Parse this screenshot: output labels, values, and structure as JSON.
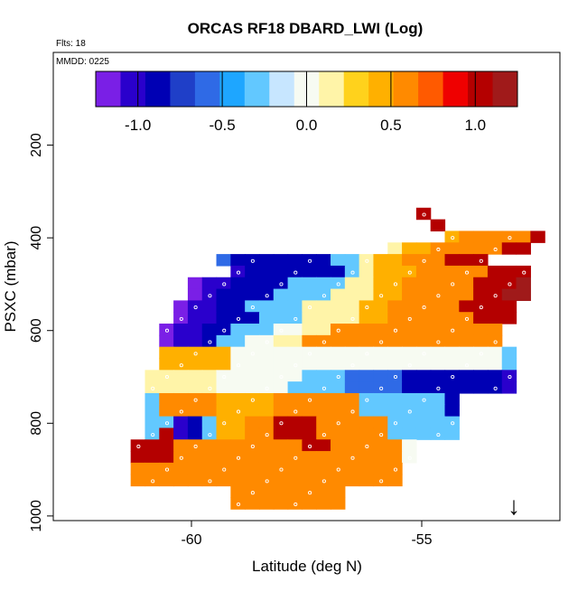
{
  "chart_data": {
    "type": "heatmap",
    "title": "ORCAS RF18 DBARD_LWI (Log)",
    "corner_labels": {
      "flights": "Flts: 18",
      "mmdd": "MMDD: 0225"
    },
    "xlabel": "Latitude (deg N)",
    "ylabel": "PSXC (mbar)",
    "xlim": [
      -63,
      -52
    ],
    "ylim": [
      1010,
      0
    ],
    "y_scale_note": "pressure axis increases downward",
    "x_ticks": [
      {
        "value": -60,
        "label": "-60"
      },
      {
        "value": -55,
        "label": "-55"
      }
    ],
    "y_ticks": [
      {
        "value": 200,
        "label": "200"
      },
      {
        "value": 400,
        "label": "400"
      },
      {
        "value": 600,
        "label": "600"
      },
      {
        "value": 800,
        "label": "800"
      },
      {
        "value": 1000,
        "label": "1000"
      }
    ],
    "colorbar": {
      "range": [
        -1.25,
        1.25
      ],
      "ticks": [
        {
          "value": -1.0,
          "label": "-1.0"
        },
        {
          "value": -0.5,
          "label": "-0.5"
        },
        {
          "value": 0.0,
          "label": "0.0"
        },
        {
          "value": 0.5,
          "label": "0.5"
        },
        {
          "value": 1.0,
          "label": "1.0"
        }
      ],
      "colors": [
        "#7a1fe6",
        "#2a00cc",
        "#0000b4",
        "#1f3fc8",
        "#2f6ae6",
        "#1ea6ff",
        "#62c8ff",
        "#c7e6ff",
        "#f7fbf2",
        "#fff4a8",
        "#ffd21c",
        "#ffb000",
        "#ff8a00",
        "#ff5a00",
        "#ef0000",
        "#b40000",
        "#a01a1a"
      ]
    },
    "cell_grid": {
      "lat_start": -62.25,
      "lat_step": 0.31,
      "p_start": 310,
      "p_step": 25
    },
    "rows": [
      {
        "p": 335,
        "cols": [],
        "values": []
      },
      {
        "p": 360,
        "cols": [],
        "values": []
      },
      {
        "p": 385,
        "cols": [],
        "values": []
      },
      {
        "p": 410,
        "cols": [],
        "values": []
      },
      {
        "p": 435,
        "cols": [],
        "values": []
      },
      {
        "p": 460,
        "cols": [],
        "values": []
      },
      {
        "p": 485,
        "cols": [],
        "values": []
      },
      {
        "p": 510,
        "cols": [],
        "values": []
      },
      {
        "p": 535,
        "cols": [],
        "values": []
      },
      {
        "p": 560,
        "cols": [],
        "values": []
      },
      {
        "p": 585,
        "cols": [],
        "values": []
      },
      {
        "p": 610,
        "cols": [],
        "values": []
      },
      {
        "p": 635,
        "cols": [],
        "values": []
      },
      {
        "p": 660,
        "cols": [],
        "values": []
      },
      {
        "p": 685,
        "cols": [],
        "values": []
      },
      {
        "p": 710,
        "cols": [],
        "values": []
      },
      {
        "p": 735,
        "cols": [],
        "values": []
      },
      {
        "p": 760,
        "cols": [],
        "values": []
      },
      {
        "p": 785,
        "cols": [],
        "values": []
      },
      {
        "p": 810,
        "cols": [],
        "values": []
      },
      {
        "p": 835,
        "cols": [],
        "values": []
      },
      {
        "p": 860,
        "cols": [],
        "values": []
      },
      {
        "p": 885,
        "cols": [],
        "values": []
      },
      {
        "p": 910,
        "cols": [],
        "values": []
      },
      {
        "p": 935,
        "cols": [],
        "values": []
      },
      {
        "p": 960,
        "cols": [],
        "values": []
      },
      {
        "p": 985,
        "cols": [],
        "values": []
      }
    ],
    "grid": [
      "..................................",
      ".......................R..........",
      "........................R.........",
      ".........................YOOOOOR..",
      ".....................PYYOOOOORR...",
      ".........CBBBBBBBLLPYYOOORRR......",
      "..........UBBBBBBBLPYYYOOOOORRR..",
      ".......VUUBBBBLLLLPPYYOOOOORRRD..",
      ".......VUBBBBLLLLPPPYYOOOOORRDD..",
      "......VUUBBLLLLPPPPYYOOOOORRRR...",
      "......VUUBBBLLLPPPPYYOOOOOORRR...",
      ".....VUUBBLLLWWPPOOOOOOOOOOOO....",
      ".....VUUBLLWWPPOOOOOOOOOOOOOO....",
      ".....YYYYYWWWWWWWWWWWWWWWWWWWL...",
      ".....YYYYYWWWWWWWWWWWWWWWWWWWL...",
      "....PPPPPWWWWWWLLLCCCCBBBBBBBU...",
      "....PPPPPWWWWWLLLLCCCCBBBBBBBU...",
      "....LOOOOYYYYOOOOOOLLLLLLB.......",
      "....LOOOOYYYYOOOOOOLLLLLLB.......",
      "....LLUBLYYOORRROOOOOLLLLL.......",
      "....LRUBLYYOORRROOOOOLLLLL.......",
      "...RRROOOOOOOOORROOOOOW...........",
      "...RRROOOOOOOOOOOOOOOOW...........",
      "...OOOOOOOOOOOOOOOOOOO............",
      "...OOOOOOOOOOOOOOOOOOO............",
      "..........OOOOOOOO................",
      "..........OOOOOOOO................"
    ],
    "legend_codes": {
      "V": -1.2,
      "U": -1.05,
      "B": -0.85,
      "C": -0.55,
      "L": -0.35,
      "W": 0.05,
      "P": 0.2,
      "Y": 0.45,
      "O": 0.65,
      "R": 1.0,
      "D": 1.2
    },
    "annotation": {
      "symbol": "↓",
      "lat": -53.0,
      "p": 985
    }
  }
}
